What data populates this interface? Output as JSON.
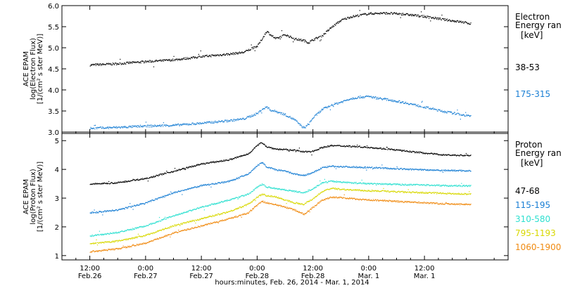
{
  "chart_data": [
    {
      "type": "scatter",
      "panel": "electron",
      "ylabel_lines": [
        "ACE EPAM",
        "log(Electron Flux)",
        "[1/(cm² s ster MeV)]"
      ],
      "ylim": [
        3.0,
        6.0
      ],
      "yticks": [
        "3.0",
        "3.5",
        "4.0",
        "4.5",
        "5.0",
        "5.5",
        "6.0"
      ],
      "legend_title": [
        "Electron",
        "Energy ran"
      ],
      "legend_unit": "[keV]",
      "series": [
        {
          "name": "38-53",
          "color": "#000000",
          "points": [
            [
              0,
              4.6
            ],
            [
              6,
              4.63
            ],
            [
              12,
              4.68
            ],
            [
              18,
              4.72
            ],
            [
              24,
              4.8
            ],
            [
              30,
              4.86
            ],
            [
              33,
              4.9
            ],
            [
              36,
              5.05
            ],
            [
              37,
              5.22
            ],
            [
              38,
              5.4
            ],
            [
              39,
              5.3
            ],
            [
              40,
              5.22
            ],
            [
              42,
              5.32
            ],
            [
              44,
              5.22
            ],
            [
              46,
              5.18
            ],
            [
              47,
              5.13
            ],
            [
              48,
              5.2
            ],
            [
              50,
              5.3
            ],
            [
              52,
              5.5
            ],
            [
              54,
              5.66
            ],
            [
              56,
              5.74
            ],
            [
              58,
              5.78
            ],
            [
              60,
              5.82
            ],
            [
              64,
              5.83
            ],
            [
              68,
              5.8
            ],
            [
              72,
              5.75
            ],
            [
              76,
              5.68
            ],
            [
              80,
              5.62
            ],
            [
              82,
              5.58
            ]
          ]
        },
        {
          "name": "175-315",
          "color": "#1a7fd4",
          "points": [
            [
              0,
              3.1
            ],
            [
              6,
              3.12
            ],
            [
              12,
              3.15
            ],
            [
              18,
              3.17
            ],
            [
              24,
              3.22
            ],
            [
              30,
              3.28
            ],
            [
              33,
              3.32
            ],
            [
              36,
              3.45
            ],
            [
              37,
              3.55
            ],
            [
              38,
              3.6
            ],
            [
              39,
              3.52
            ],
            [
              40,
              3.5
            ],
            [
              42,
              3.42
            ],
            [
              44,
              3.3
            ],
            [
              46,
              3.1
            ],
            [
              47,
              3.2
            ],
            [
              48,
              3.35
            ],
            [
              50,
              3.55
            ],
            [
              52,
              3.65
            ],
            [
              54,
              3.72
            ],
            [
              56,
              3.8
            ],
            [
              58,
              3.84
            ],
            [
              60,
              3.85
            ],
            [
              64,
              3.78
            ],
            [
              68,
              3.7
            ],
            [
              72,
              3.6
            ],
            [
              76,
              3.5
            ],
            [
              80,
              3.42
            ],
            [
              82,
              3.38
            ]
          ]
        }
      ]
    },
    {
      "type": "scatter",
      "panel": "proton",
      "ylabel_lines": [
        "ACE EPAM",
        "log(Proton Flux)",
        "[1/(cm² s ster MeV)]"
      ],
      "ylim": [
        0.85,
        5.25
      ],
      "yticks": [
        "1",
        "2",
        "3",
        "4",
        "5"
      ],
      "legend_title": [
        "Proton",
        "Energy ran"
      ],
      "legend_unit": "[keV]",
      "series": [
        {
          "name": "47-68",
          "color": "#000000",
          "points": [
            [
              0,
              3.5
            ],
            [
              6,
              3.55
            ],
            [
              12,
              3.7
            ],
            [
              18,
              3.95
            ],
            [
              24,
              4.2
            ],
            [
              30,
              4.35
            ],
            [
              34,
              4.55
            ],
            [
              36,
              4.85
            ],
            [
              37,
              4.95
            ],
            [
              38,
              4.8
            ],
            [
              40,
              4.72
            ],
            [
              42,
              4.7
            ],
            [
              44,
              4.68
            ],
            [
              46,
              4.62
            ],
            [
              48,
              4.65
            ],
            [
              50,
              4.78
            ],
            [
              52,
              4.84
            ],
            [
              56,
              4.82
            ],
            [
              60,
              4.78
            ],
            [
              64,
              4.72
            ],
            [
              68,
              4.65
            ],
            [
              72,
              4.58
            ],
            [
              76,
              4.52
            ],
            [
              80,
              4.5
            ],
            [
              82,
              4.5
            ]
          ]
        },
        {
          "name": "115-195",
          "color": "#1a7fd4",
          "points": [
            [
              0,
              2.5
            ],
            [
              6,
              2.6
            ],
            [
              12,
              2.85
            ],
            [
              18,
              3.2
            ],
            [
              24,
              3.45
            ],
            [
              30,
              3.6
            ],
            [
              34,
              3.85
            ],
            [
              36,
              4.15
            ],
            [
              37,
              4.25
            ],
            [
              38,
              4.1
            ],
            [
              40,
              4.0
            ],
            [
              42,
              3.95
            ],
            [
              44,
              3.85
            ],
            [
              46,
              3.8
            ],
            [
              48,
              3.9
            ],
            [
              50,
              4.08
            ],
            [
              52,
              4.12
            ],
            [
              56,
              4.1
            ],
            [
              60,
              4.08
            ],
            [
              64,
              4.05
            ],
            [
              68,
              4.02
            ],
            [
              72,
              4.0
            ],
            [
              76,
              3.98
            ],
            [
              80,
              3.97
            ],
            [
              82,
              3.96
            ]
          ]
        },
        {
          "name": "310-580",
          "color": "#2ee0d0",
          "points": [
            [
              0,
              1.7
            ],
            [
              6,
              1.82
            ],
            [
              12,
              2.05
            ],
            [
              18,
              2.4
            ],
            [
              24,
              2.7
            ],
            [
              30,
              2.95
            ],
            [
              34,
              3.15
            ],
            [
              36,
              3.4
            ],
            [
              37,
              3.5
            ],
            [
              38,
              3.4
            ],
            [
              40,
              3.35
            ],
            [
              42,
              3.3
            ],
            [
              44,
              3.25
            ],
            [
              46,
              3.2
            ],
            [
              48,
              3.35
            ],
            [
              50,
              3.55
            ],
            [
              52,
              3.6
            ],
            [
              56,
              3.55
            ],
            [
              60,
              3.52
            ],
            [
              64,
              3.5
            ],
            [
              68,
              3.48
            ],
            [
              72,
              3.47
            ],
            [
              76,
              3.45
            ],
            [
              80,
              3.44
            ],
            [
              82,
              3.44
            ]
          ]
        },
        {
          "name": "795-1193",
          "color": "#d8d800",
          "points": [
            [
              0,
              1.42
            ],
            [
              6,
              1.52
            ],
            [
              12,
              1.72
            ],
            [
              18,
              2.05
            ],
            [
              24,
              2.3
            ],
            [
              30,
              2.55
            ],
            [
              34,
              2.8
            ],
            [
              36,
              3.05
            ],
            [
              37,
              3.15
            ],
            [
              38,
              3.1
            ],
            [
              40,
              3.05
            ],
            [
              42,
              2.95
            ],
            [
              44,
              2.85
            ],
            [
              46,
              2.8
            ],
            [
              48,
              3.0
            ],
            [
              50,
              3.25
            ],
            [
              52,
              3.35
            ],
            [
              56,
              3.3
            ],
            [
              60,
              3.27
            ],
            [
              64,
              3.25
            ],
            [
              68,
              3.22
            ],
            [
              72,
              3.2
            ],
            [
              76,
              3.18
            ],
            [
              80,
              3.16
            ],
            [
              82,
              3.15
            ]
          ]
        },
        {
          "name": "1060-1900",
          "color": "#f08a10",
          "points": [
            [
              0,
              1.15
            ],
            [
              6,
              1.25
            ],
            [
              12,
              1.45
            ],
            [
              18,
              1.8
            ],
            [
              24,
              2.05
            ],
            [
              30,
              2.3
            ],
            [
              34,
              2.5
            ],
            [
              36,
              2.78
            ],
            [
              37,
              2.9
            ],
            [
              38,
              2.85
            ],
            [
              40,
              2.78
            ],
            [
              42,
              2.7
            ],
            [
              44,
              2.6
            ],
            [
              46,
              2.45
            ],
            [
              48,
              2.7
            ],
            [
              50,
              2.95
            ],
            [
              52,
              3.05
            ],
            [
              56,
              3.0
            ],
            [
              60,
              2.95
            ],
            [
              64,
              2.92
            ],
            [
              68,
              2.88
            ],
            [
              72,
              2.85
            ],
            [
              76,
              2.82
            ],
            [
              80,
              2.8
            ],
            [
              82,
              2.8
            ]
          ]
        }
      ]
    }
  ],
  "x_axis": {
    "xlim": [
      -6,
      90
    ],
    "xlabel": "hours:minutes, Feb. 26, 2014 - Mar. 1, 2014",
    "ticks": [
      {
        "x": 0,
        "time": "12:00",
        "date": "Feb.26"
      },
      {
        "x": 12,
        "time": "0:00",
        "date": "Feb.27"
      },
      {
        "x": 24,
        "time": "12:00",
        "date": "Feb.27"
      },
      {
        "x": 36,
        "time": "0:00",
        "date": "Feb.28"
      },
      {
        "x": 48,
        "time": "12:00",
        "date": "Feb.28"
      },
      {
        "x": 60,
        "time": "0:00",
        "date": "Mar. 1"
      },
      {
        "x": 72,
        "time": "12:00",
        "date": "Mar. 1"
      }
    ]
  }
}
